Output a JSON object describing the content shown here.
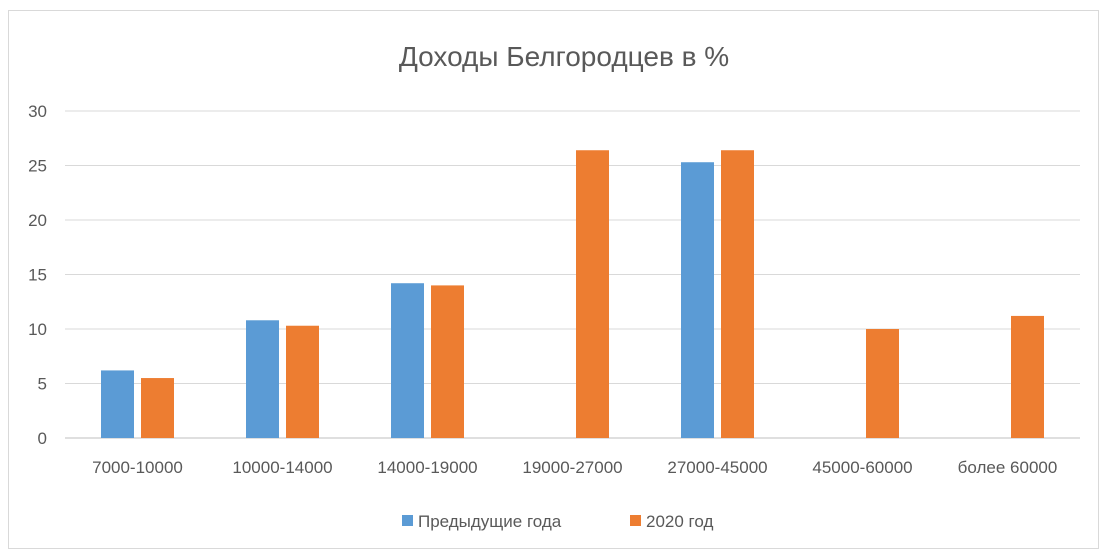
{
  "chart_data": {
    "type": "bar",
    "title": "Доходы Белгородцев в %",
    "categories": [
      "7000-10000",
      "10000-14000",
      "14000-19000",
      "19000-27000",
      "27000-45000",
      "45000-60000",
      "более 60000"
    ],
    "series": [
      {
        "name": "Предыдущие года",
        "color": "#5b9bd5",
        "values": [
          6.2,
          10.8,
          14.2,
          null,
          25.3,
          null,
          null
        ]
      },
      {
        "name": "2020 год",
        "color": "#ed7d31",
        "values": [
          5.5,
          10.3,
          14.0,
          26.4,
          26.4,
          10.0,
          11.2
        ]
      }
    ],
    "yticks": [
      "0",
      "5",
      "10",
      "15",
      "20",
      "25",
      "30"
    ],
    "ylim": [
      0,
      30
    ],
    "grid": true,
    "legend_position": "bottom"
  }
}
